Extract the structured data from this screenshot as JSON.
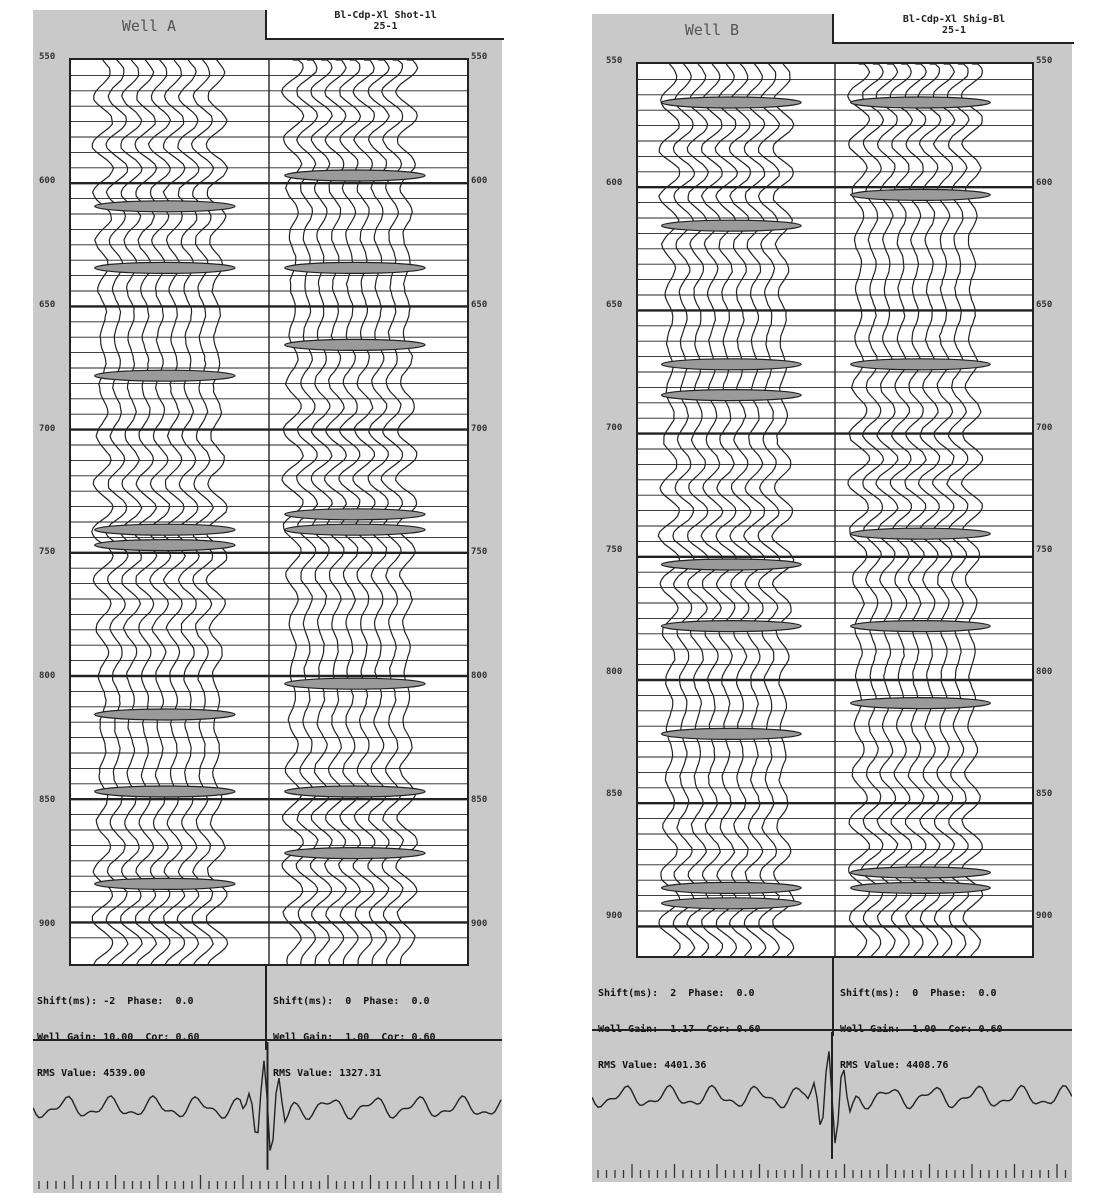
{
  "wells": [
    {
      "id": "a",
      "title": "Well A",
      "header": [
        "Bl-Cdp-Xl  Shot-1l",
        "25-1"
      ],
      "depth_ticks": [
        "550",
        "600",
        "650",
        "700",
        "750",
        "800",
        "850",
        "900"
      ],
      "info_left": [
        "Shift(ms): -2  Phase:  0.0",
        "Well Gain: 10.00  Cor: 0.60",
        "RMS Value: 4539.00"
      ],
      "info_right": [
        "Shift(ms):  0  Phase:  0.0",
        "Well Gain:  1.00  Cor: 0.60",
        "RMS Value: 1327.31"
      ]
    },
    {
      "id": "b",
      "title": "Well B",
      "header": [
        "Bl-Cdp-Xl  Shig-Bl",
        "25-1"
      ],
      "depth_ticks": [
        "550",
        "600",
        "650",
        "700",
        "750",
        "800",
        "850",
        "900"
      ],
      "info_left": [
        "Shift(ms):  2  Phase:  0.0",
        "Well Gain:  1.17  Cor: 0.60",
        "RMS Value: 4401.36"
      ],
      "info_right": [
        "Shift(ms):  0  Phase:  0.0",
        "Well Gain:  1.00  Cor: 0.60",
        "RMS Value: 4408.76"
      ]
    }
  ],
  "colors": {
    "panel_bg": "#c9c9c9",
    "ink": "#222222",
    "plot_bg": "#ffffff",
    "fill": "#888888"
  }
}
